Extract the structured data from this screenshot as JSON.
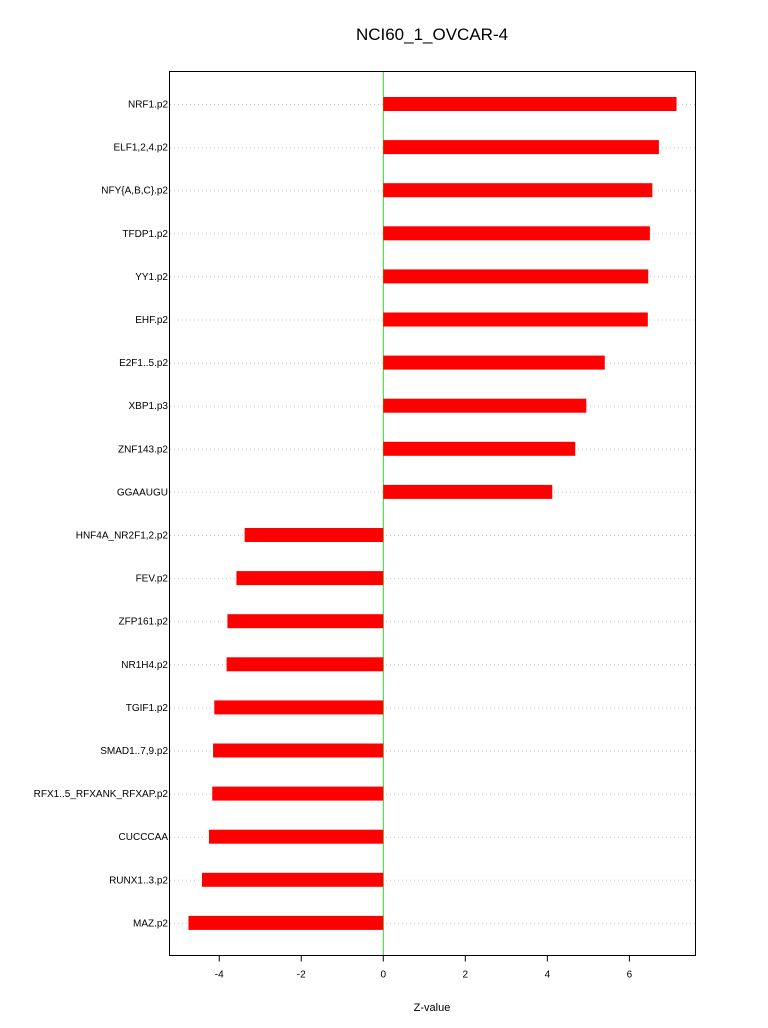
{
  "chart_data": {
    "type": "bar",
    "orientation": "horizontal",
    "title": "NCI60_1_OVCAR-4",
    "xlabel": "Z-value",
    "ylabel": "",
    "xlim": [
      -5.2,
      7.6
    ],
    "xticks": [
      -4,
      -2,
      0,
      2,
      4,
      6
    ],
    "grid": "horizontal-dotted",
    "bar_color": "#ff0000",
    "zero_line_color": "#33cc33",
    "categories": [
      "NRF1.p2",
      "ELF1,2,4.p2",
      "NFY{A,B,C}.p2",
      "TFDP1.p2",
      "YY1.p2",
      "EHF.p2",
      "E2F1..5.p2",
      "XBP1.p3",
      "ZNF143.p2",
      "GGAAUGU",
      "HNF4A_NR2F1,2.p2",
      "FEV.p2",
      "ZFP161.p2",
      "NR1H4.p2",
      "TGIF1.p2",
      "SMAD1..7,9.p2",
      "RFX1..5_RFXANK_RFXAP.p2",
      "CUCCCAA",
      "RUNX1..3.p2",
      "MAZ.p2"
    ],
    "values": [
      7.15,
      6.72,
      6.56,
      6.5,
      6.46,
      6.45,
      5.4,
      4.95,
      4.68,
      4.12,
      -3.38,
      -3.58,
      -3.8,
      -3.82,
      -4.12,
      -4.15,
      -4.17,
      -4.25,
      -4.42,
      -4.75
    ]
  }
}
